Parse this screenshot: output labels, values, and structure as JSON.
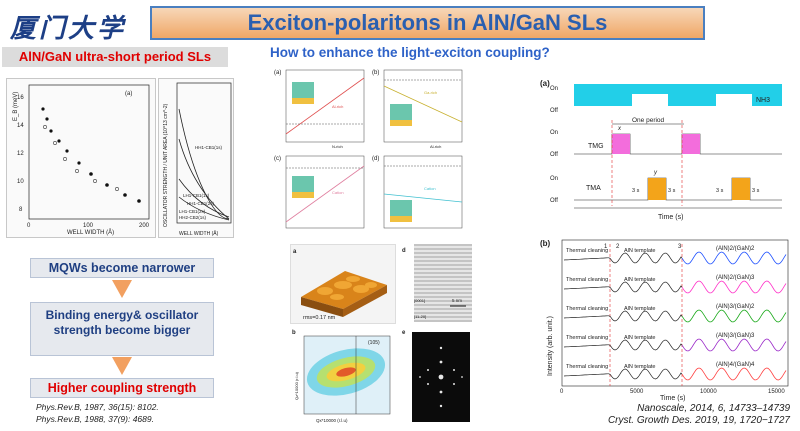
{
  "header": {
    "logo_text": "厦门大学",
    "title": "Exciton-polaritons in AlN/GaN SLs"
  },
  "left": {
    "heading": "AlN/GaN ultra-short period SLs",
    "plot_a": {
      "panel_label": "(a)",
      "xlabel": "WELL WIDTH (Å)",
      "ylabel": "E_B (meV)",
      "xticks": [
        "0",
        "100",
        "200"
      ],
      "yticks": [
        "8",
        "10",
        "12",
        "14",
        "16"
      ]
    },
    "plot_b": {
      "ylabel": "OSCILLATOR STRENGTH / UNIT AREA (10^13 cm^-2)",
      "xlabel": "WELL WIDTH (Å)",
      "xticks": [
        "0",
        "100",
        "200"
      ],
      "yticks": [
        "1",
        "2",
        "3",
        "4",
        "5"
      ],
      "curve_labels": [
        "HH1-CB1(1s)",
        "LH1-CB1(1s)",
        "HH1-CB1(2s)",
        "LH1-CB1(2s)",
        "HH2-CB2(1s)"
      ]
    },
    "flow": [
      "MQWs become narrower",
      "Binding energy& oscillator strength become bigger",
      "Higher coupling strength"
    ],
    "refs": [
      "Phys.Rev.B, 1987, 36(15): 8102.",
      "Phys.Rev.B, 1988, 37(9): 4689."
    ]
  },
  "center": {
    "heading": "How to enhance the light-exciton coupling?",
    "quad_labels": [
      "(a)",
      "(b)",
      "(c)",
      "(d)"
    ],
    "quad_texts": [
      "Al-rich",
      "Ga-rich",
      "Cation",
      "Cation",
      "N-rich",
      "Al-rich"
    ],
    "afm": {
      "label": "a",
      "rms": "rms=0.17 nm"
    },
    "tem": {
      "label": "d",
      "scale": "5 nm",
      "dir1": "[0001]",
      "dir2": "[11-20]"
    },
    "rsm": {
      "label": "b",
      "reflection": "(105)",
      "xlabel": "Qx*10000 (r.l.u)",
      "ylabel": "Qz*10000 (r.l.u)"
    },
    "fft": {
      "label": "e"
    }
  },
  "right": {
    "timing": {
      "label": "(a)",
      "rows": [
        "NH3",
        "TMG",
        "TMA"
      ],
      "on_label": "On",
      "off_label": "Off",
      "one_period": "One period",
      "t_x": "x",
      "t_y": "y",
      "t_3s": "3 s",
      "xlabel": "Time (s)"
    },
    "reflectance": {
      "label": "(b)",
      "ylabel": "Intensity (arb. unit.)",
      "xlabel": "Time (s)",
      "xticks": [
        "0",
        "5000",
        "10000",
        "15000"
      ],
      "markers": [
        "1",
        "2",
        "3"
      ],
      "stages": [
        "Thermal cleaning",
        "AlN template"
      ],
      "series": [
        {
          "name": "(AlN)2/(GaN)2",
          "color": "#1e50ff"
        },
        {
          "name": "(AlN)2/(GaN)3",
          "color": "#ff30c8"
        },
        {
          "name": "(AlN)3/(GaN)2",
          "color": "#18a818"
        },
        {
          "name": "(AlN)3/(GaN)3",
          "color": "#9a28c8"
        },
        {
          "name": "(AlN)4/(GaN)4",
          "color": "#ff4040"
        }
      ]
    },
    "refs": [
      "Nanoscale, 2014, 6, 14733–14739",
      "Cryst. Growth Des. 2019, 19, 1720−1727"
    ]
  }
}
